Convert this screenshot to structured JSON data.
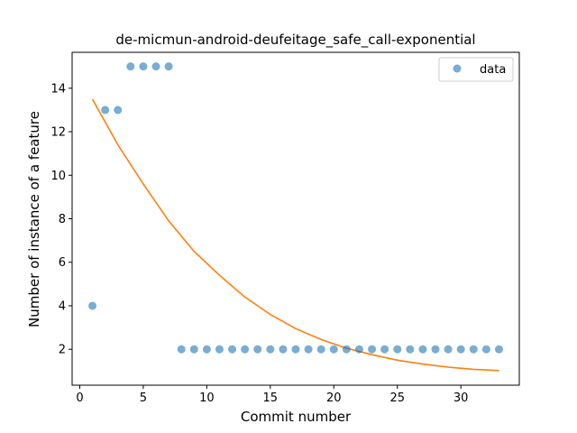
{
  "chart_data": {
    "type": "scatter",
    "title": "de-micmun-android-deufeitage_safe_call-exponential",
    "xlabel": "Commit number",
    "ylabel": "Number of instance of a feature",
    "xlim": [
      -0.6,
      34.6
    ],
    "ylim": [
      0.35,
      15.65
    ],
    "xticks": [
      0,
      5,
      10,
      15,
      20,
      25,
      30
    ],
    "yticks": [
      2,
      4,
      6,
      8,
      10,
      12,
      14
    ],
    "grid": false,
    "legend": {
      "position": "top-right",
      "entries": [
        "data"
      ]
    },
    "colors": {
      "data": "#1f77b4",
      "fit": "#ff7f0e"
    },
    "series": [
      {
        "name": "data",
        "kind": "scatter",
        "x": [
          1,
          2,
          3,
          4,
          5,
          6,
          7,
          8,
          9,
          10,
          11,
          12,
          13,
          14,
          15,
          16,
          17,
          18,
          19,
          20,
          21,
          22,
          23,
          24,
          25,
          26,
          27,
          28,
          29,
          30,
          31,
          32,
          33
        ],
        "y": [
          4,
          13,
          13,
          15,
          15,
          15,
          15,
          2,
          2,
          2,
          2,
          2,
          2,
          2,
          2,
          2,
          2,
          2,
          2,
          2,
          2,
          2,
          2,
          2,
          2,
          2,
          2,
          2,
          2,
          2,
          2,
          2,
          2
        ]
      },
      {
        "kind": "line",
        "x": [
          1,
          3,
          5,
          7,
          9,
          11,
          13,
          15,
          17,
          19,
          21,
          23,
          25,
          27,
          29,
          31,
          33
        ],
        "y": [
          13.5,
          11.4,
          9.6,
          7.9,
          6.5,
          5.4,
          4.4,
          3.6,
          2.95,
          2.45,
          2.05,
          1.75,
          1.5,
          1.32,
          1.18,
          1.08,
          1.02
        ]
      }
    ]
  }
}
